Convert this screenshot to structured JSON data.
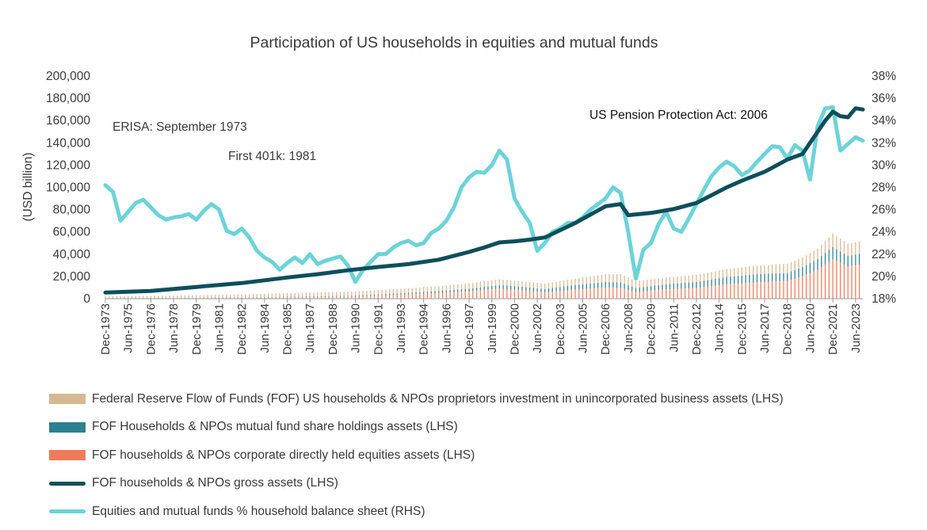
{
  "chart_data": {
    "type": "line",
    "title": "Participation of US households in equities and mutual funds",
    "ylabel": "(USD billion)",
    "ylim": [
      0,
      200000
    ],
    "y_ticks": [
      "0",
      "20,000",
      "40,000",
      "60,000",
      "80,000",
      "100,000",
      "120,000",
      "140,000",
      "160,000",
      "180,000",
      "200,000"
    ],
    "y2lim": [
      18,
      38
    ],
    "y2_ticks": [
      "18%",
      "20%",
      "22%",
      "24%",
      "26%",
      "28%",
      "30%",
      "32%",
      "34%",
      "36%",
      "38%"
    ],
    "x_range": [
      1973.92,
      2023.9
    ],
    "x_ticks": [
      {
        "label": "Dec-1973",
        "x": 1973.92
      },
      {
        "label": "Jun-1975",
        "x": 1975.42
      },
      {
        "label": "Dec-1976",
        "x": 1976.92
      },
      {
        "label": "Jun-1978",
        "x": 1978.42
      },
      {
        "label": "Dec-1979",
        "x": 1979.92
      },
      {
        "label": "Jun-1981",
        "x": 1981.42
      },
      {
        "label": "Dec-1982",
        "x": 1982.92
      },
      {
        "label": "Jun-1984",
        "x": 1984.42
      },
      {
        "label": "Dec-1985",
        "x": 1985.92
      },
      {
        "label": "Jun-1987",
        "x": 1987.42
      },
      {
        "label": "Dec-1988",
        "x": 1988.92
      },
      {
        "label": "Jun-1990",
        "x": 1990.42
      },
      {
        "label": "Dec-1991",
        "x": 1991.92
      },
      {
        "label": "Jun-1993",
        "x": 1993.42
      },
      {
        "label": "Dec-1994",
        "x": 1994.92
      },
      {
        "label": "Jun-1996",
        "x": 1996.42
      },
      {
        "label": "Dec-1997",
        "x": 1997.92
      },
      {
        "label": "Jun-1999",
        "x": 1999.42
      },
      {
        "label": "Dec-2000",
        "x": 2000.92
      },
      {
        "label": "Jun-2002",
        "x": 2002.42
      },
      {
        "label": "Dec-2003",
        "x": 2003.92
      },
      {
        "label": "Jun-2005",
        "x": 2005.42
      },
      {
        "label": "Dec-2006",
        "x": 2006.92
      },
      {
        "label": "Jun-2008",
        "x": 2008.42
      },
      {
        "label": "Dec-2009",
        "x": 2009.92
      },
      {
        "label": "Jun-2011",
        "x": 2011.42
      },
      {
        "label": "Dec-2012",
        "x": 2012.92
      },
      {
        "label": "Jun-2014",
        "x": 2014.42
      },
      {
        "label": "Dec-2015",
        "x": 2015.92
      },
      {
        "label": "Jun-2017",
        "x": 2017.42
      },
      {
        "label": "Dec-2018",
        "x": 2018.92
      },
      {
        "label": "Jun-2020",
        "x": 2020.42
      },
      {
        "label": "Dec-2021",
        "x": 2021.92
      },
      {
        "label": "Jun-2023",
        "x": 2023.42
      }
    ],
    "bars": {
      "x": [
        1973.92,
        1975.92,
        1977.92,
        1979.92,
        1981.92,
        1983.92,
        1985.92,
        1987.92,
        1989.92,
        1991.92,
        1993.92,
        1995.92,
        1997.92,
        1999.92,
        2000.92,
        2002.92,
        2004.92,
        2006.92,
        2007.92,
        2008.92,
        2010.92,
        2012.92,
        2014.92,
        2016.92,
        2018.92,
        2019.92,
        2020.92,
        2021.92,
        2022.92,
        2023.9
      ],
      "series": [
        {
          "name": "Federal Reserve Flow of Funds (FOF) US households & NPOs proprietors investment in unincorporated business assets (LHS)",
          "color": "#d5b894",
          "values": [
            1500,
            1700,
            2000,
            2300,
            2600,
            2900,
            3200,
            3400,
            3600,
            3800,
            4100,
            4400,
            4800,
            5100,
            4900,
            4800,
            5800,
            7000,
            7400,
            6400,
            6000,
            6400,
            7200,
            7800,
            8400,
            8600,
            9400,
            12000,
            11000,
            11200
          ]
        },
        {
          "name": "FOF Households & NPOs mutual fund share holdings assets (LHS)",
          "color": "#2e7f8f",
          "values": [
            100,
            100,
            100,
            100,
            150,
            200,
            400,
            500,
            600,
            900,
            1300,
            1800,
            2400,
            3300,
            3300,
            3100,
            4200,
            5000,
            5100,
            3800,
            4600,
            5400,
            6600,
            7200,
            7200,
            8400,
            9600,
            11000,
            9400,
            9800
          ]
        },
        {
          "name": "FOF households & NPOs corporate directly held equities assets (LHS)",
          "color": "#ef7b5a",
          "values": [
            700,
            600,
            600,
            700,
            1000,
            1100,
            1400,
            1700,
            2000,
            3000,
            4000,
            5100,
            6600,
            9000,
            8000,
            5600,
            8100,
            10000,
            9600,
            5700,
            8400,
            9600,
            12900,
            14800,
            16000,
            20000,
            26000,
            35500,
            29000,
            31000
          ]
        }
      ]
    },
    "gross_assets": {
      "name": "FOF households & NPOs gross assets (LHS)",
      "color": "#0d4f5b",
      "x": [
        1973.92,
        1976.92,
        1979.92,
        1982.92,
        1985.92,
        1987.92,
        1989.92,
        1991.92,
        1993.92,
        1995.92,
        1997.92,
        1998.92,
        1999.92,
        2000.92,
        2001.92,
        2002.92,
        2004.92,
        2006.92,
        2007.92,
        2008.42,
        2009.92,
        2011.42,
        2012.92,
        2014.92,
        2015.92,
        2017.42,
        2018.92,
        2019.92,
        2020.42,
        2020.92,
        2021.42,
        2021.92,
        2022.42,
        2022.92,
        2023.42,
        2023.9
      ],
      "values": [
        5500,
        7000,
        10500,
        14000,
        19000,
        22000,
        25500,
        28500,
        31000,
        35000,
        42000,
        46000,
        50500,
        51500,
        53000,
        55000,
        68000,
        83000,
        85000,
        75000,
        77000,
        80500,
        86000,
        100000,
        106000,
        114000,
        125000,
        130000,
        140000,
        150000,
        160000,
        168000,
        164000,
        163000,
        171000,
        170000
      ]
    },
    "pct_share": {
      "name": "Equities and mutual funds % household balance sheet (RHS)",
      "color": "#6dd3d9",
      "x": [
        1973.92,
        1974.42,
        1974.92,
        1975.42,
        1975.92,
        1976.42,
        1976.92,
        1977.42,
        1977.92,
        1978.42,
        1978.92,
        1979.42,
        1979.92,
        1980.42,
        1980.92,
        1981.42,
        1981.92,
        1982.42,
        1982.92,
        1983.42,
        1983.92,
        1984.42,
        1984.92,
        1985.42,
        1985.92,
        1986.42,
        1986.92,
        1987.42,
        1987.92,
        1988.42,
        1988.92,
        1989.42,
        1989.92,
        1990.42,
        1990.92,
        1991.42,
        1991.92,
        1992.42,
        1992.92,
        1993.42,
        1993.92,
        1994.42,
        1994.92,
        1995.42,
        1995.92,
        1996.42,
        1996.92,
        1997.42,
        1997.92,
        1998.42,
        1998.92,
        1999.42,
        1999.92,
        2000.42,
        2000.92,
        2001.42,
        2001.92,
        2002.42,
        2002.92,
        2003.42,
        2003.92,
        2004.42,
        2004.92,
        2005.42,
        2005.92,
        2006.42,
        2006.92,
        2007.42,
        2007.92,
        2008.42,
        2008.92,
        2009.42,
        2009.92,
        2010.42,
        2010.92,
        2011.42,
        2011.92,
        2012.42,
        2012.92,
        2013.42,
        2013.92,
        2014.42,
        2014.92,
        2015.42,
        2015.92,
        2016.42,
        2016.92,
        2017.42,
        2017.92,
        2018.42,
        2018.92,
        2019.42,
        2019.92,
        2020.42,
        2020.92,
        2021.42,
        2021.92,
        2022.42,
        2022.92,
        2023.42,
        2023.9
      ],
      "values": [
        28.2,
        27.6,
        25.0,
        25.8,
        26.6,
        26.9,
        26.2,
        25.5,
        25.1,
        25.3,
        25.4,
        25.6,
        25.1,
        25.9,
        26.5,
        26.0,
        24.1,
        23.8,
        24.3,
        23.5,
        22.3,
        21.7,
        21.3,
        20.6,
        21.2,
        21.7,
        21.2,
        22.0,
        21.1,
        21.4,
        21.6,
        21.8,
        21.0,
        19.5,
        20.6,
        21.3,
        22.0,
        22.0,
        22.6,
        23.0,
        23.2,
        22.8,
        23.0,
        23.9,
        24.3,
        25.0,
        26.2,
        28.0,
        28.9,
        29.4,
        29.3,
        30.0,
        31.3,
        30.5,
        27.0,
        25.8,
        24.8,
        22.3,
        23.0,
        24.0,
        24.3,
        24.8,
        24.8,
        25.3,
        26.0,
        26.5,
        27.0,
        28.0,
        27.5,
        24.0,
        19.8,
        22.4,
        23.0,
        24.7,
        25.8,
        24.3,
        24.0,
        25.2,
        26.5,
        27.8,
        29.0,
        29.8,
        30.3,
        29.9,
        29.1,
        29.5,
        30.3,
        31.0,
        31.7,
        31.6,
        30.6,
        31.8,
        31.3,
        28.7,
        33.5,
        35.1,
        35.2,
        31.3,
        31.9,
        32.5,
        32.2
      ]
    },
    "annotations": [
      "ERISA: September 1973",
      "First 401k: 1981",
      "US Pension Protection Act: 2006"
    ],
    "legend_position": "bottom",
    "grid": false
  }
}
